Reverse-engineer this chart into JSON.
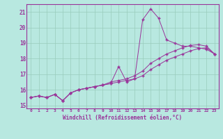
{
  "bg_color": "#b8e8e0",
  "grid_color": "#99ccbb",
  "line_color": "#993399",
  "marker": "+",
  "xlabel": "Windchill (Refroidissement éolien,°C)",
  "xlabel_color": "#993399",
  "tick_color": "#993399",
  "ylim": [
    14.8,
    21.5
  ],
  "xlim": [
    -0.5,
    23.5
  ],
  "yticks": [
    15,
    16,
    17,
    18,
    19,
    20,
    21
  ],
  "xticks": [
    0,
    1,
    2,
    3,
    4,
    5,
    6,
    7,
    8,
    9,
    10,
    11,
    12,
    13,
    14,
    15,
    16,
    17,
    18,
    19,
    20,
    21,
    22,
    23
  ],
  "series": [
    [
      15.5,
      15.6,
      15.5,
      15.7,
      15.3,
      15.8,
      16.0,
      16.1,
      16.2,
      16.3,
      16.4,
      17.5,
      16.5,
      16.7,
      20.5,
      21.2,
      20.6,
      19.2,
      19.0,
      18.8,
      18.8,
      18.7,
      18.6,
      18.3
    ],
    [
      15.5,
      15.6,
      15.5,
      15.7,
      15.3,
      15.8,
      16.0,
      16.1,
      16.2,
      16.3,
      16.5,
      16.6,
      16.7,
      16.9,
      17.2,
      17.7,
      18.0,
      18.3,
      18.5,
      18.7,
      18.85,
      18.9,
      18.8,
      18.3
    ],
    [
      15.5,
      15.6,
      15.5,
      15.7,
      15.3,
      15.8,
      16.0,
      16.1,
      16.2,
      16.3,
      16.4,
      16.5,
      16.6,
      16.7,
      16.9,
      17.3,
      17.6,
      17.9,
      18.1,
      18.3,
      18.5,
      18.65,
      18.7,
      18.3
    ]
  ]
}
